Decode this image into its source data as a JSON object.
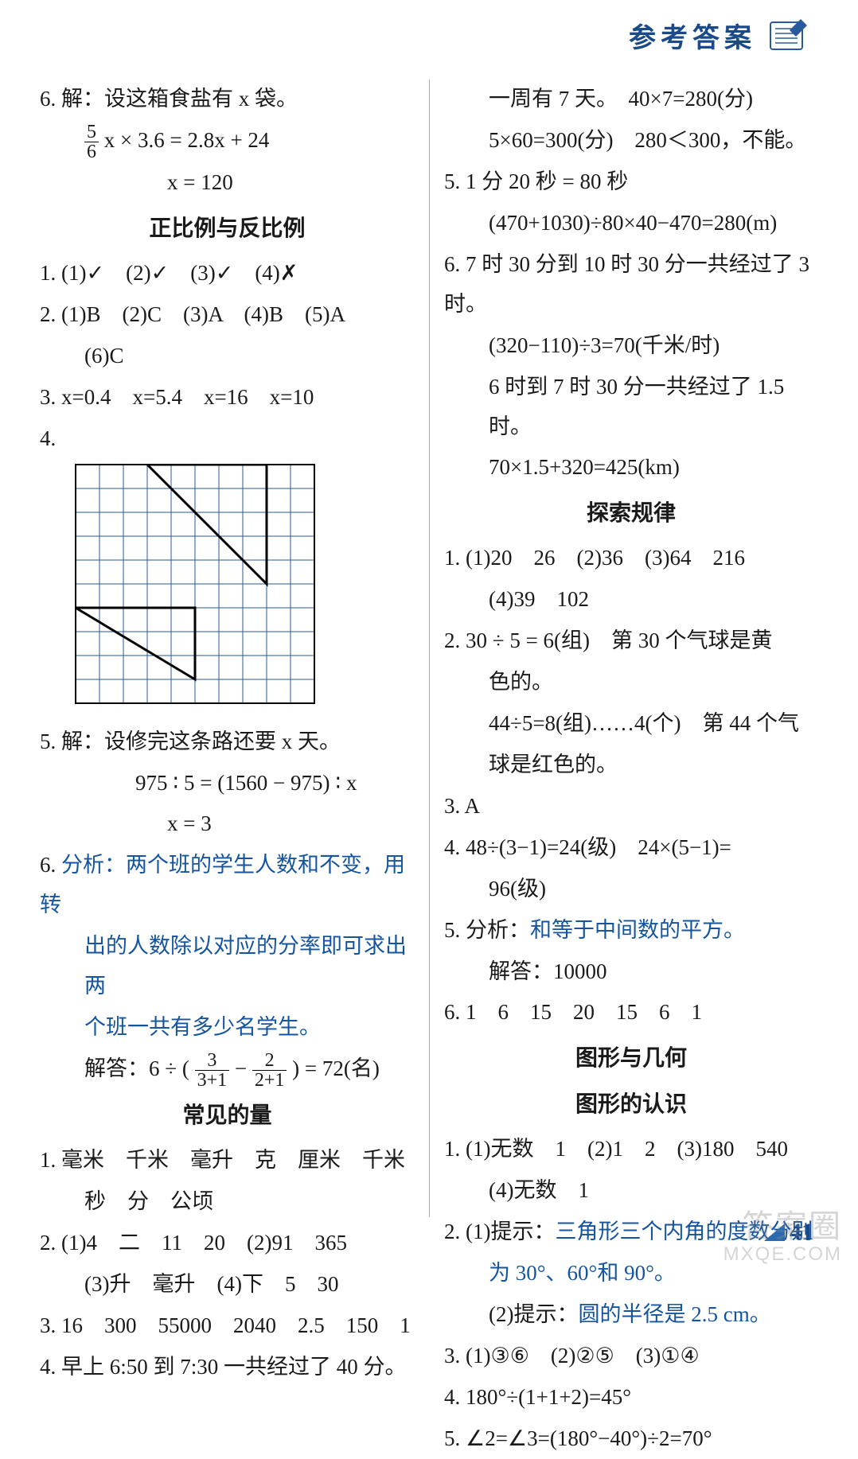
{
  "header": {
    "title": "参考答案"
  },
  "left": {
    "q6a_l1": "6. 解：设这箱食盐有 x 袋。",
    "q6a_eq": " x × 3.6 = 2.8x + 24",
    "q6a_x": "x = 120",
    "sec1_title": "正比例与反比例",
    "s1_q1": "1. (1)✓　(2)✓　(3)✓　(4)✗",
    "s1_q2a": "2. (1)B　(2)C　(3)A　(4)B　(5)A",
    "s1_q2b": "(6)C",
    "s1_q3": "3. x=0.4　x=5.4　x=16　x=10",
    "s1_q4": "4.",
    "grid": {
      "cols": 10,
      "rows": 10,
      "cell": 30,
      "stroke": "#2a5a9a",
      "tri_stroke": "#000000",
      "tri_width": 3,
      "tri1": [
        [
          3,
          0
        ],
        [
          8,
          0
        ],
        [
          8,
          5
        ]
      ],
      "tri2": [
        [
          0,
          6
        ],
        [
          5,
          6
        ],
        [
          5,
          9
        ]
      ]
    },
    "s1_q5_l1": "5. 解：设修完这条路还要 x 天。",
    "s1_q5_l2": "975 ∶ 5 = (1560 − 975) ∶ x",
    "s1_q5_l3": "x = 3",
    "s1_q6_l1": "6. 分析：两个班的学生人数和不变，用转",
    "s1_q6_l2": "出的人数除以对应的分率即可求出两",
    "s1_q6_l3": "个班一共有多少名学生。",
    "s1_q6_ans_pre": "解答：6 ÷ (",
    "s1_q6_ans_mid": " − ",
    "s1_q6_ans_post": ") = 72(名)",
    "frac1": {
      "num": "3",
      "den": "3+1"
    },
    "frac2": {
      "num": "2",
      "den": "2+1"
    },
    "sec2_title": "常见的量",
    "s2_q1a": "1. 毫米　千米　毫升　克　厘米　千米",
    "s2_q1b": "秒　分　公顷",
    "s2_q2a": "2. (1)4　二　11　20　(2)91　365",
    "s2_q2b": "(3)升　毫升　(4)下　5　30",
    "s2_q3": "3. 16　300　55000　2040　2.5　150　1",
    "s2_q4": "4. 早上 6:50 到 7:30 一共经过了 40 分。"
  },
  "right": {
    "r_l1": "一周有 7 天。　40×7=280(分)",
    "r_l2": "5×60=300(分)　280＜300，不能。",
    "r_q5_l1": "5. 1 分 20 秒 = 80 秒",
    "r_q5_l2": "(470+1030)÷80×40−470=280(m)",
    "r_q6_l1": "6. 7 时 30 分到 10 时 30 分一共经过了 3 时。",
    "r_q6_l2": "(320−110)÷3=70(千米/时)",
    "r_q6_l3": "6 时到 7 时 30 分一共经过了 1.5 时。",
    "r_q6_l4": "70×1.5+320=425(km)",
    "sec3_title": "探索规律",
    "s3_q1a": "1. (1)20　26　(2)36　(3)64　216",
    "s3_q1b": "(4)39　102",
    "s3_q2a": "2. 30 ÷ 5 = 6(组)　第 30 个气球是黄",
    "s3_q2b": "色的。",
    "s3_q2c": "44÷5=8(组)……4(个)　第 44 个气",
    "s3_q2d": "球是红色的。",
    "s3_q3": "3. A",
    "s3_q4a": "4. 48÷(3−1)=24(级)　24×(5−1)=",
    "s3_q4b": "96(级)",
    "s3_q5a_pre": "5. 分析：",
    "s3_q5a_blue": "和等于中间数的平方。",
    "s3_q5b": "解答：10000",
    "s3_q6": "6. 1　6　15　20　15　6　1",
    "sec4_title": "图形与几何",
    "sec4b_title": "图形的认识",
    "s4_q1a": "1. (1)无数　1　(2)1　2　(3)180　540",
    "s4_q1b": "(4)无数　1",
    "s4_q2a_pre": "2. (1)提示：",
    "s4_q2a_blue": "三角形三个内角的度数分别",
    "s4_q2a2": "为 30°、60°和 90°。",
    "s4_q2b_pre": "(2)提示：",
    "s4_q2b_blue": "圆的半径是 2.5 cm。",
    "s4_q3": "3. (1)③⑥　(2)②⑤　(3)①④",
    "s4_q4": "4. 180°÷(1+1+2)=45°",
    "s4_q5": "5. ∠2=∠3=(180°−40°)÷2=70°"
  },
  "page_number": "41",
  "watermark_l1": "答案圈",
  "watermark_l2": "MXQE.COM"
}
